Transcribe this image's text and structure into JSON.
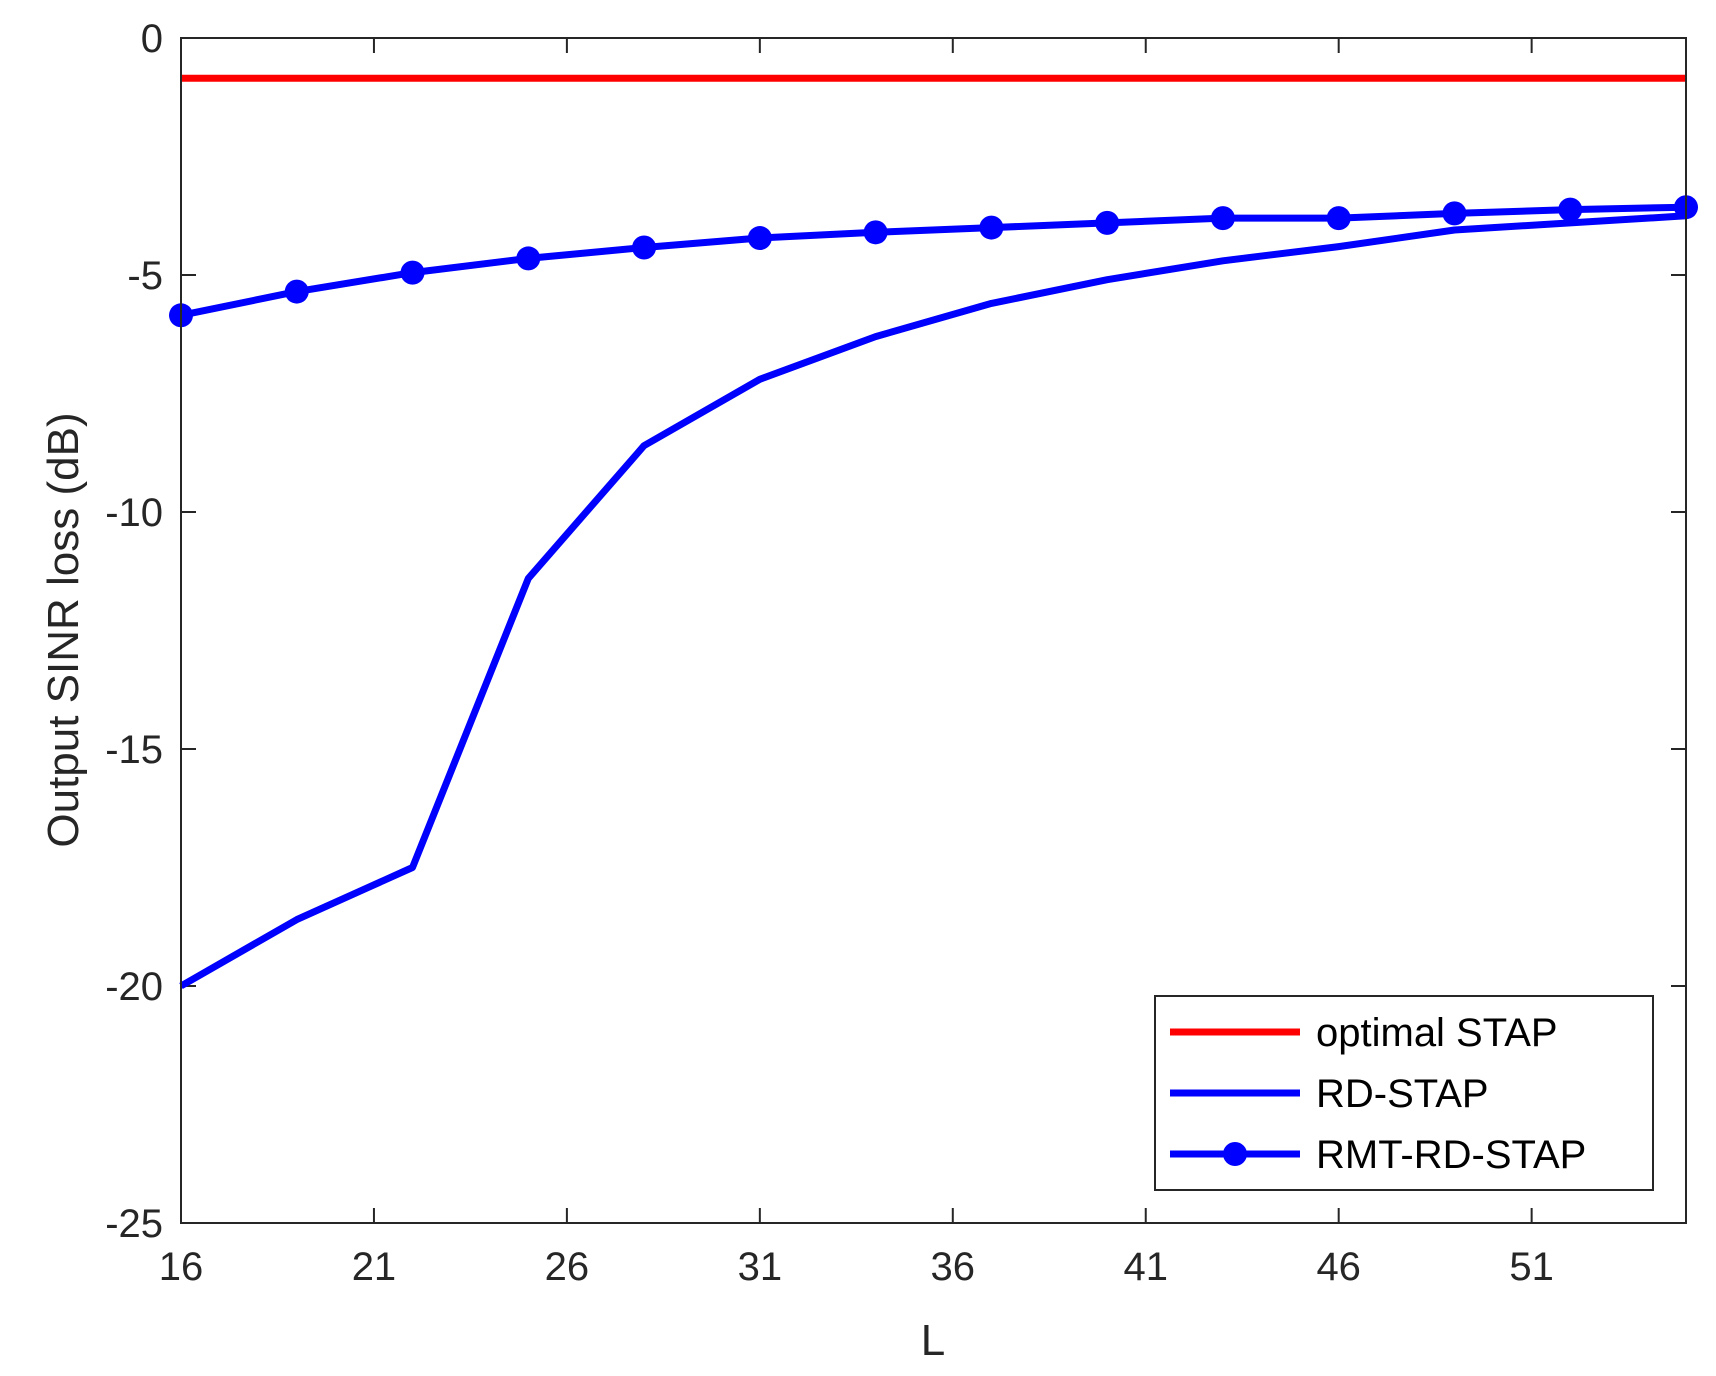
{
  "chart_data": {
    "type": "line",
    "title": "",
    "xlabel": "L",
    "ylabel": "Output SINR loss (dB)",
    "xlim": [
      16,
      55
    ],
    "ylim": [
      -25,
      0
    ],
    "xticks": [
      16,
      21,
      26,
      31,
      36,
      41,
      46,
      51
    ],
    "yticks": [
      0,
      -5,
      -10,
      -15,
      -20,
      -25
    ],
    "xtick_labels": [
      "16",
      "21",
      "26",
      "31",
      "36",
      "41",
      "46",
      "51"
    ],
    "ytick_labels": [
      "0",
      "-5",
      "-10",
      "-15",
      "-20",
      "-25"
    ],
    "grid": false,
    "legend_position": "bottom-right",
    "series": [
      {
        "name": "optimal STAP",
        "color": "#ff0000",
        "marker": "none",
        "x": [
          16,
          55
        ],
        "y": [
          -0.85,
          -0.85
        ]
      },
      {
        "name": "RD-STAP",
        "color": "#0000ff",
        "marker": "none",
        "x": [
          16,
          19,
          22,
          25,
          28,
          31,
          34,
          37,
          40,
          43,
          46,
          49,
          52,
          55
        ],
        "y": [
          -20.0,
          -18.6,
          -17.5,
          -11.4,
          -8.6,
          -7.2,
          -6.3,
          -5.6,
          -5.1,
          -4.7,
          -4.4,
          -4.05,
          -3.9,
          -3.75
        ]
      },
      {
        "name": "RMT-RD-STAP",
        "color": "#0000ff",
        "marker": "circle",
        "x": [
          16,
          19,
          22,
          25,
          28,
          31,
          34,
          37,
          40,
          43,
          46,
          49,
          52,
          55
        ],
        "y": [
          -5.85,
          -5.35,
          -4.95,
          -4.65,
          -4.42,
          -4.22,
          -4.1,
          -4.0,
          -3.9,
          -3.8,
          -3.8,
          -3.7,
          -3.62,
          -3.57
        ]
      }
    ]
  }
}
